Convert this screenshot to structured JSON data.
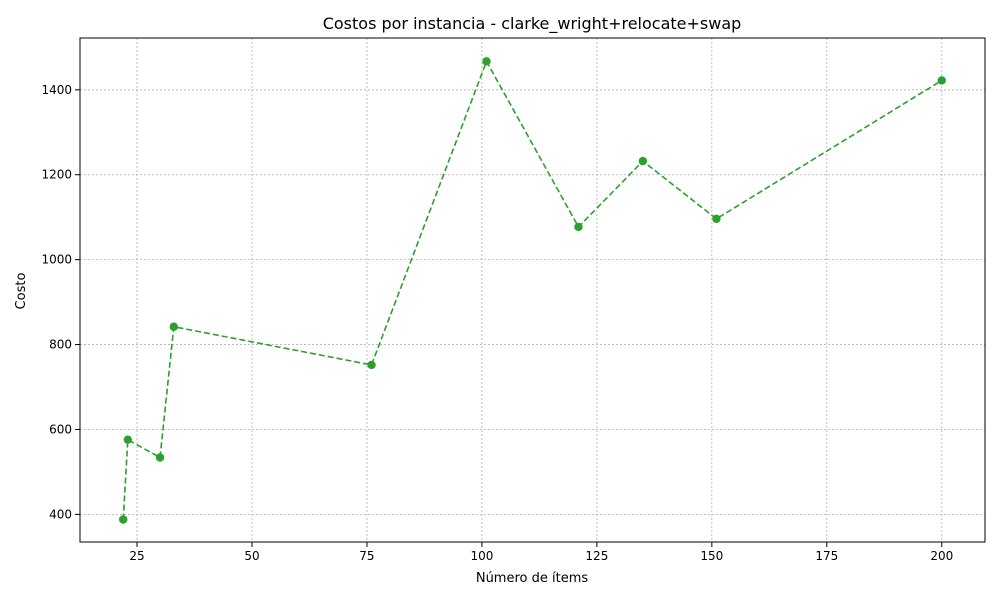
{
  "chart_data": {
    "type": "line",
    "title": "Costos por instancia - clarke_wright+relocate+swap",
    "xlabel": "Número de ítems",
    "ylabel": "Costo",
    "xlim": [
      12.6,
      209.4
    ],
    "ylim": [
      335,
      1522
    ],
    "xticks": [
      25,
      50,
      75,
      100,
      125,
      150,
      175,
      200
    ],
    "yticks": [
      400,
      600,
      800,
      1000,
      1200,
      1400
    ],
    "grid": true,
    "series": [
      {
        "x": [
          22,
          23,
          30,
          33,
          76,
          101,
          121,
          135,
          151,
          200
        ],
        "y": [
          388,
          576,
          534,
          842,
          752,
          1467,
          1077,
          1232,
          1096,
          1422
        ],
        "color": "#2ca02c",
        "line_style": "dashed",
        "marker": "circle"
      }
    ]
  }
}
